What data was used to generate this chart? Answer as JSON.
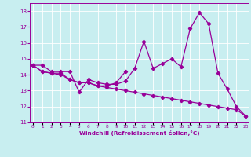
{
  "xlabel": "Windchill (Refroidissement éolien,°C)",
  "bg_color": "#c8eef0",
  "line_color": "#990099",
  "grid_color": "#ffffff",
  "series": [
    {
      "x": [
        0,
        1,
        2,
        3,
        4,
        5,
        6,
        7,
        8,
        9,
        10,
        11,
        12,
        13,
        14,
        15,
        16,
        17,
        18,
        19,
        20,
        21,
        22,
        23
      ],
      "y": [
        14.6,
        14.6,
        14.2,
        14.2,
        14.2,
        12.9,
        13.7,
        13.5,
        13.4,
        13.4,
        13.6,
        14.4,
        16.1,
        14.4,
        14.7,
        15.0,
        14.5,
        16.9,
        17.9,
        17.2,
        14.1,
        13.1,
        12.0,
        11.4
      ]
    },
    {
      "x": [
        0,
        1,
        2,
        3,
        4,
        5,
        6,
        7,
        8,
        9,
        10
      ],
      "y": [
        14.6,
        14.2,
        14.1,
        14.1,
        13.7,
        13.5,
        13.5,
        13.3,
        13.3,
        13.5,
        14.2
      ]
    },
    {
      "x": [
        0,
        1,
        2,
        3,
        4,
        5,
        6,
        7,
        8,
        9,
        10,
        11,
        12,
        13,
        14,
        15,
        16,
        17,
        18,
        19,
        20,
        21,
        22,
        23
      ],
      "y": [
        14.6,
        14.2,
        14.1,
        14.0,
        13.7,
        13.5,
        13.5,
        13.3,
        13.2,
        13.1,
        13.0,
        12.9,
        12.8,
        12.7,
        12.6,
        12.5,
        12.4,
        12.3,
        12.2,
        12.1,
        12.0,
        11.9,
        11.8,
        11.4
      ]
    }
  ],
  "xlim": [
    -0.3,
    23.3
  ],
  "ylim": [
    11,
    18.5
  ],
  "yticks": [
    11,
    12,
    13,
    14,
    15,
    16,
    17,
    18
  ],
  "xticks": [
    0,
    1,
    2,
    3,
    4,
    5,
    6,
    7,
    8,
    9,
    10,
    11,
    12,
    13,
    14,
    15,
    16,
    17,
    18,
    19,
    20,
    21,
    22,
    23
  ],
  "xtick_labels": [
    "0",
    "1",
    "2",
    "3",
    "4",
    "5",
    "6",
    "7",
    "8",
    "9",
    "10",
    "11",
    "12",
    "13",
    "14",
    "15",
    "16",
    "17",
    "18",
    "19",
    "20",
    "21",
    "22",
    "23"
  ],
  "marker": "D",
  "markersize": 2.2,
  "linewidth": 0.9
}
